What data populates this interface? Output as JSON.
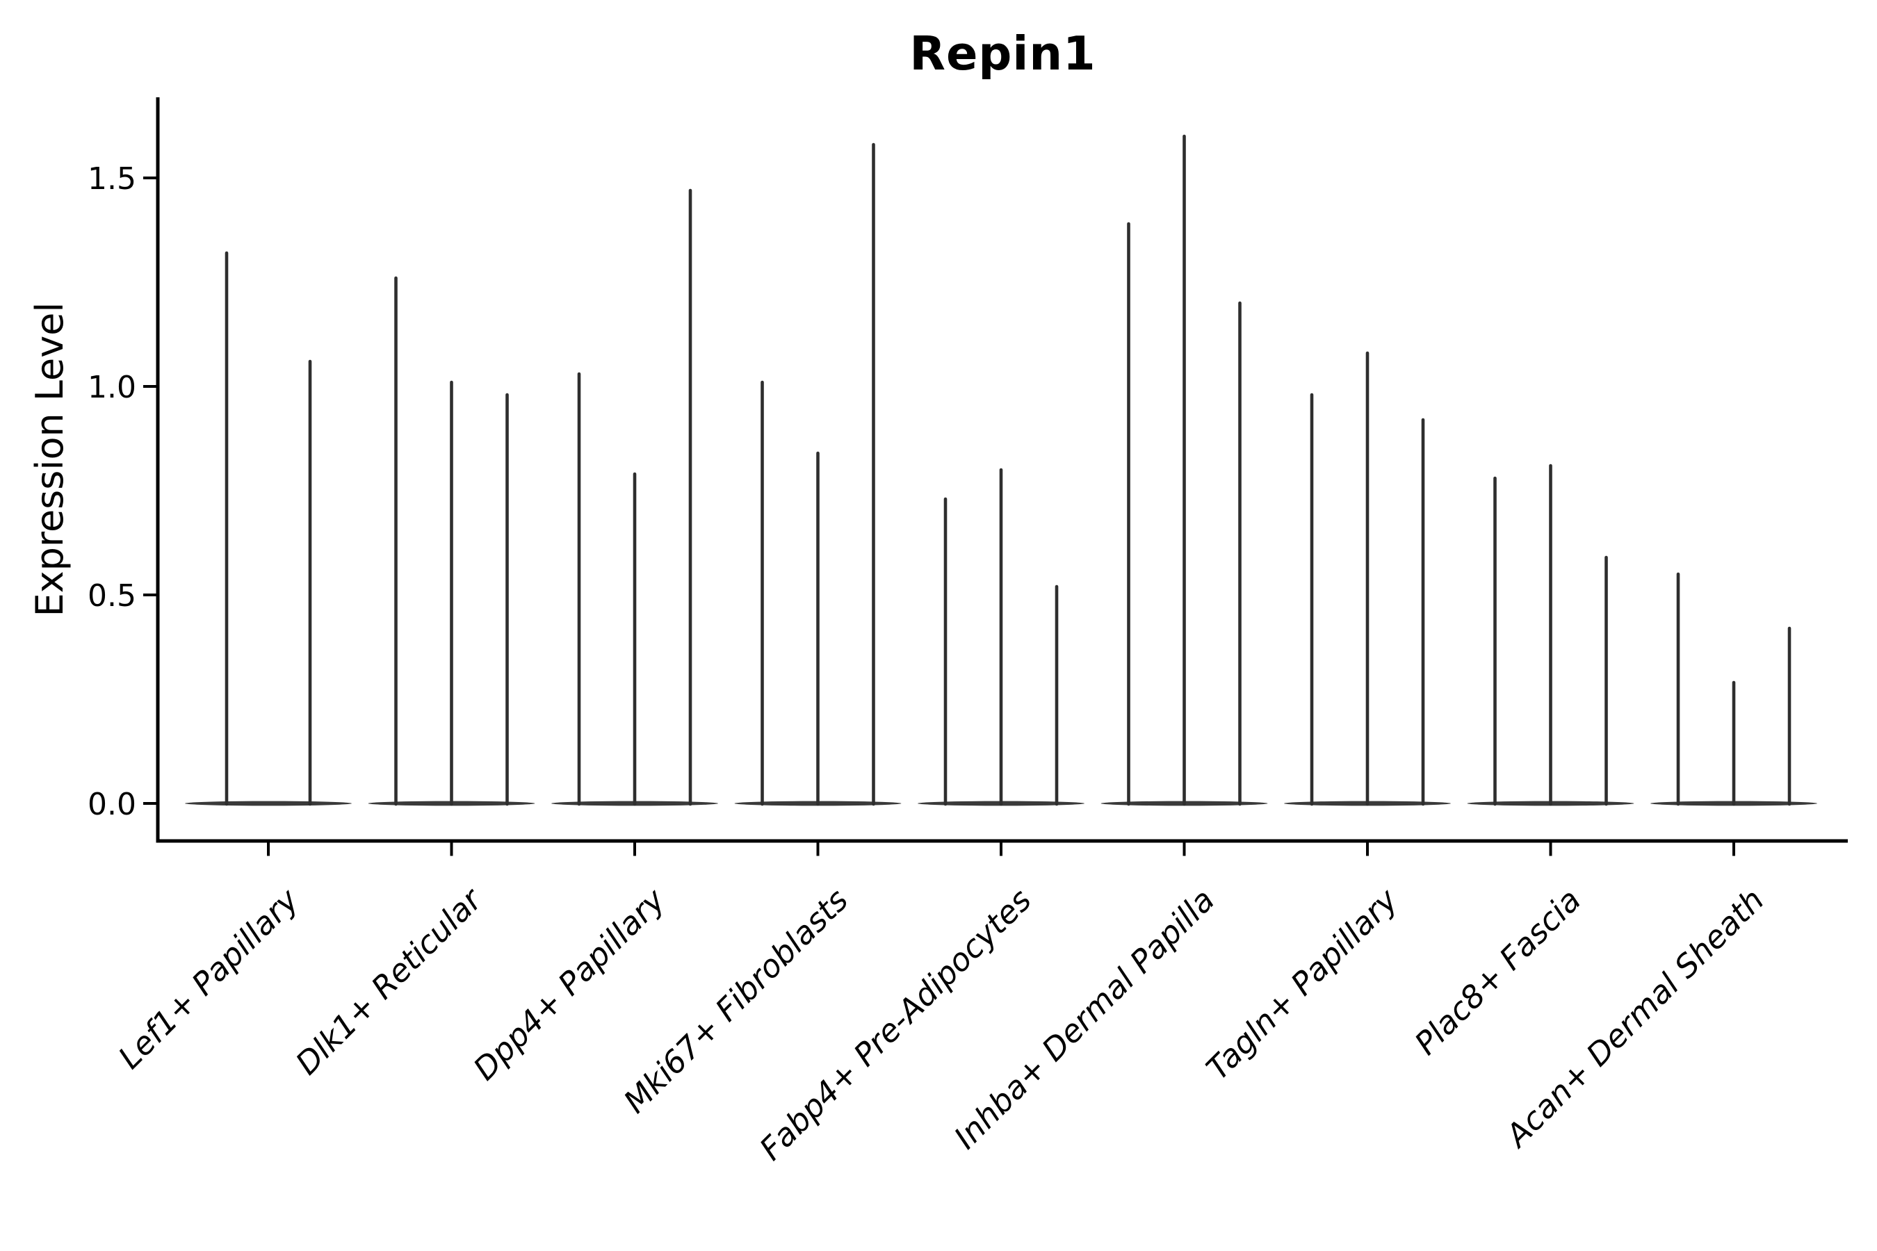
{
  "figure": {
    "background_color": "#ffffff",
    "axis_color": "#000000",
    "violin_color": "#2e2e2e",
    "violin_base_color": "#3a3a3a",
    "tick_label_color": "#000000"
  },
  "chart_data": {
    "type": "violin",
    "title": "Repin1",
    "xlabel": "",
    "ylabel": "Expression Level",
    "yticks": [
      0.0,
      0.5,
      1.0,
      1.5
    ],
    "ytick_labels": [
      "0.0",
      "0.5",
      "1.0",
      "1.5"
    ],
    "ylim": [
      -0.09,
      1.69
    ],
    "grid": false,
    "legend": false,
    "categories": [
      "Lef1+ Papillary",
      "Dlk1+ Reticular",
      "Dpp4+ Papillary",
      "Mki67+ Fibroblasts",
      "Fabp4+ Pre-Adipocytes",
      "Inhba+ Dermal Papilla",
      "Tagln+ Papillary",
      "Plac8+ Fascia",
      "Acan+ Dermal Sheath"
    ],
    "violins_per_category": [
      2,
      3,
      3,
      3,
      3,
      3,
      3,
      3,
      3
    ],
    "spike_maxima": [
      [
        1.32,
        1.06
      ],
      [
        1.26,
        1.01,
        0.98
      ],
      [
        1.03,
        0.79,
        1.47
      ],
      [
        1.01,
        0.84,
        1.58
      ],
      [
        0.73,
        0.8,
        0.52
      ],
      [
        1.39,
        1.6,
        1.2
      ],
      [
        0.98,
        1.08,
        0.92
      ],
      [
        0.78,
        0.81,
        0.59
      ],
      [
        0.55,
        0.29,
        0.42
      ]
    ],
    "shape_note": "Each violin is a needle: nearly all density at 0 (flat tapered base lens) with a thin spike up to the max expression value."
  }
}
